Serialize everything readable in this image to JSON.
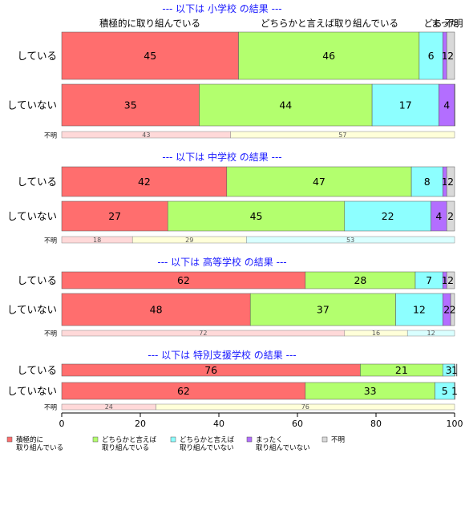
{
  "chart_data": {
    "type": "bar",
    "orientation": "horizontal",
    "stacked": "percent",
    "xlim": [
      0,
      100
    ],
    "x_ticks": [
      "0",
      "20",
      "40",
      "60",
      "80",
      "100"
    ],
    "column_headers": [
      "積極的に取り組んでいる",
      "どちらかと言えば取り組んでいる",
      "どちらかと言えば取り組んでいない",
      "まったく取り組んでいない",
      "不明"
    ],
    "column_headers_visible": [
      "積極的に取り組んでいる",
      "どちらかと言えば取り組んでいる",
      "どち",
      "まった",
      "不明"
    ],
    "colors": {
      "main": [
        "#ff6e6e",
        "#b3ff6e",
        "#8dffff",
        "#b36eff",
        "#d9d9d9"
      ],
      "unknown": [
        "#ffd9d9",
        "#ffffd9",
        "#d9ffff",
        "#f0d9ff",
        "#eeeeee"
      ]
    },
    "legend": {
      "position": "bottom",
      "items": [
        {
          "lines": [
            "積極的に",
            "取り組んでいる"
          ],
          "color": "#ff6e6e"
        },
        {
          "lines": [
            "どちらかと言えば",
            "取り組んでいる"
          ],
          "color": "#b3ff6e"
        },
        {
          "lines": [
            "どちらかと言えば",
            "取り組んでいない"
          ],
          "color": "#8dffff"
        },
        {
          "lines": [
            "まったく",
            "取り組んでいない"
          ],
          "color": "#b36eff"
        },
        {
          "lines": [
            "不明"
          ],
          "color": "#d9d9d9"
        }
      ]
    },
    "panels": [
      {
        "title": "--- 以下は 小学校 の結果 ---",
        "rows": [
          {
            "label": "している",
            "values": [
              45,
              46,
              6,
              1,
              2
            ],
            "labels": [
              "45",
              "46",
              "6",
              "1",
              "2"
            ]
          },
          {
            "label": "していない",
            "values": [
              35,
              44,
              17,
              4,
              0.3
            ],
            "labels": [
              "35",
              "44",
              "17",
              "4",
              ""
            ]
          }
        ],
        "unknown_row": {
          "label": "不明",
          "values": [
            43,
            57
          ],
          "labels": [
            "43",
            "57"
          ]
        }
      },
      {
        "title": "--- 以下は 中学校 の結果 ---",
        "rows": [
          {
            "label": "している",
            "values": [
              42,
              47,
              8,
              1,
              2
            ],
            "labels": [
              "42",
              "47",
              "8",
              "1",
              "2"
            ]
          },
          {
            "label": "していない",
            "values": [
              27,
              45,
              22,
              4,
              2
            ],
            "labels": [
              "27",
              "45",
              "22",
              "4",
              "2"
            ]
          }
        ],
        "unknown_row": {
          "label": "不明",
          "values": [
            18,
            29,
            53
          ],
          "labels": [
            "18",
            "29",
            "53"
          ]
        }
      },
      {
        "title": "--- 以下は 高等学校 の結果 ---",
        "rows": [
          {
            "label": "している",
            "values": [
              62,
              28,
              7,
              1,
              2
            ],
            "labels": [
              "62",
              "28",
              "7",
              "1",
              "2"
            ]
          },
          {
            "label": "していない",
            "values": [
              48,
              37,
              12,
              2,
              2
            ],
            "labels": [
              "48",
              "37",
              "12",
              "2",
              "2"
            ]
          }
        ],
        "unknown_row": {
          "label": "不明",
          "values": [
            72,
            16,
            12
          ],
          "labels": [
            "72",
            "16",
            "12"
          ]
        }
      },
      {
        "title": "--- 以下は 特別支援学校 の結果 ---",
        "rows": [
          {
            "label": "している",
            "values": [
              76,
              21,
              3,
              0.5,
              0.5
            ],
            "labels": [
              "76",
              "21",
              "3",
              "1",
              ""
            ]
          },
          {
            "label": "していない",
            "values": [
              62,
              33,
              5,
              1,
              0
            ],
            "labels": [
              "62",
              "33",
              "5",
              "1",
              ""
            ]
          }
        ],
        "unknown_row": {
          "label": "不明",
          "values": [
            24,
            76
          ],
          "labels": [
            "24",
            "76"
          ]
        }
      }
    ]
  }
}
